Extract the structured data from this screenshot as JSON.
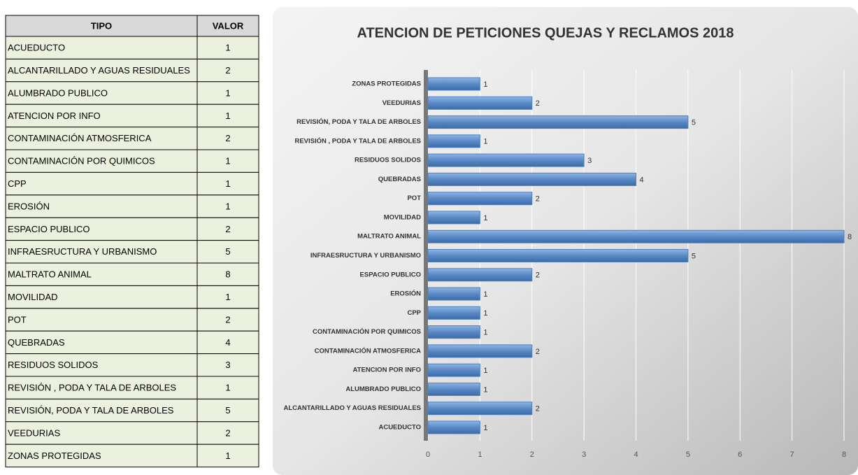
{
  "table": {
    "header": [
      "TIPO",
      "VALOR"
    ],
    "rows": [
      [
        "ACUEDUCTO",
        1
      ],
      [
        "ALCANTARILLADO Y AGUAS RESIDUALES",
        2
      ],
      [
        "ALUMBRADO PUBLICO",
        1
      ],
      [
        "ATENCION POR INFO",
        1
      ],
      [
        "CONTAMINACIÓN ATMOSFERICA",
        2
      ],
      [
        "CONTAMINACIÓN POR QUIMICOS",
        1
      ],
      [
        "CPP",
        1
      ],
      [
        "EROSIÓN",
        1
      ],
      [
        "ESPACIO PUBLICO",
        2
      ],
      [
        "INFRAESRUCTURA Y URBANISMO",
        5
      ],
      [
        "MALTRATO ANIMAL",
        8
      ],
      [
        "MOVILIDAD",
        1
      ],
      [
        "POT",
        2
      ],
      [
        "QUEBRADAS",
        4
      ],
      [
        "RESIDUOS SOLIDOS",
        3
      ],
      [
        "REVISIÓN , PODA Y TALA  DE ARBOLES",
        1
      ],
      [
        "REVISIÓN, PODA Y TALA DE ARBOLES",
        5
      ],
      [
        "VEEDURIAS",
        2
      ],
      [
        "ZONAS PROTEGIDAS",
        1
      ]
    ]
  },
  "chart_data": {
    "type": "bar",
    "orientation": "horizontal",
    "title": "ATENCION DE PETICIONES QUEJAS Y RECLAMOS 2018",
    "categories": [
      "ACUEDUCTO",
      "ALCANTARILLADO Y AGUAS RESIDUALES",
      "ALUMBRADO PUBLICO",
      "ATENCION POR INFO",
      "CONTAMINACIÓN ATMOSFERICA",
      "CONTAMINACIÓN POR QUIMICOS",
      "CPP",
      "EROSIÓN",
      "ESPACIO PUBLICO",
      "INFRAESRUCTURA Y URBANISMO",
      "MALTRATO ANIMAL",
      "MOVILIDAD",
      "POT",
      "QUEBRADAS",
      "RESIDUOS SOLIDOS",
      "REVISIÓN , PODA Y TALA DE ARBOLES",
      "REVISIÓN, PODA Y TALA DE ARBOLES",
      "VEEDURIAS",
      "ZONAS PROTEGIDAS"
    ],
    "values": [
      1,
      2,
      1,
      1,
      2,
      1,
      1,
      1,
      2,
      5,
      8,
      1,
      2,
      4,
      3,
      1,
      5,
      2,
      1
    ],
    "color": "#4f81bd",
    "xlim": [
      0,
      8
    ],
    "xticks": [
      0,
      1,
      2,
      3,
      4,
      5,
      6,
      7,
      8
    ],
    "grid": true
  }
}
